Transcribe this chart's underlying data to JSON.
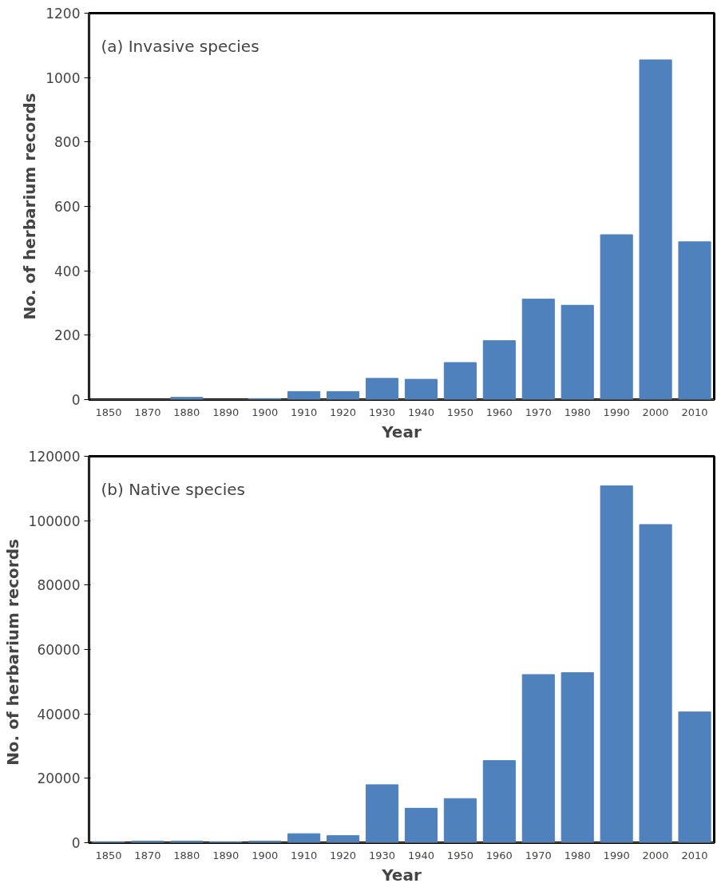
{
  "chart_data": [
    {
      "type": "bar",
      "title": "(a) Invasive species",
      "xlabel": "Year",
      "ylabel": "No. of herbarium records",
      "categories": [
        "1850",
        "1870",
        "1880",
        "1890",
        "1900",
        "1910",
        "1920",
        "1930",
        "1940",
        "1950",
        "1960",
        "1970",
        "1980",
        "1990",
        "2000",
        "2010"
      ],
      "values": [
        0,
        0,
        7,
        0,
        3,
        25,
        25,
        66,
        63,
        115,
        183,
        312,
        293,
        512,
        1055,
        490
      ],
      "color": "#4f81bd",
      "ylim": [
        0,
        1200
      ],
      "yticks": [
        0,
        200,
        400,
        600,
        800,
        1000,
        1200
      ],
      "grid": false
    },
    {
      "type": "bar",
      "title": "(b)  Native species",
      "xlabel": "Year",
      "ylabel": "No. of herbarium  records",
      "categories": [
        "1850",
        "1870",
        "1880",
        "1890",
        "1900",
        "1910",
        "1920",
        "1930",
        "1940",
        "1950",
        "1960",
        "1970",
        "1980",
        "1990",
        "2000",
        "2010"
      ],
      "values": [
        300,
        500,
        500,
        300,
        500,
        2800,
        2200,
        18000,
        10700,
        13700,
        25500,
        52200,
        52800,
        110800,
        98800,
        40600
      ],
      "color": "#4f81bd",
      "ylim": [
        0,
        120000
      ],
      "yticks": [
        0,
        20000,
        40000,
        60000,
        80000,
        100000,
        120000
      ],
      "grid": false
    }
  ]
}
